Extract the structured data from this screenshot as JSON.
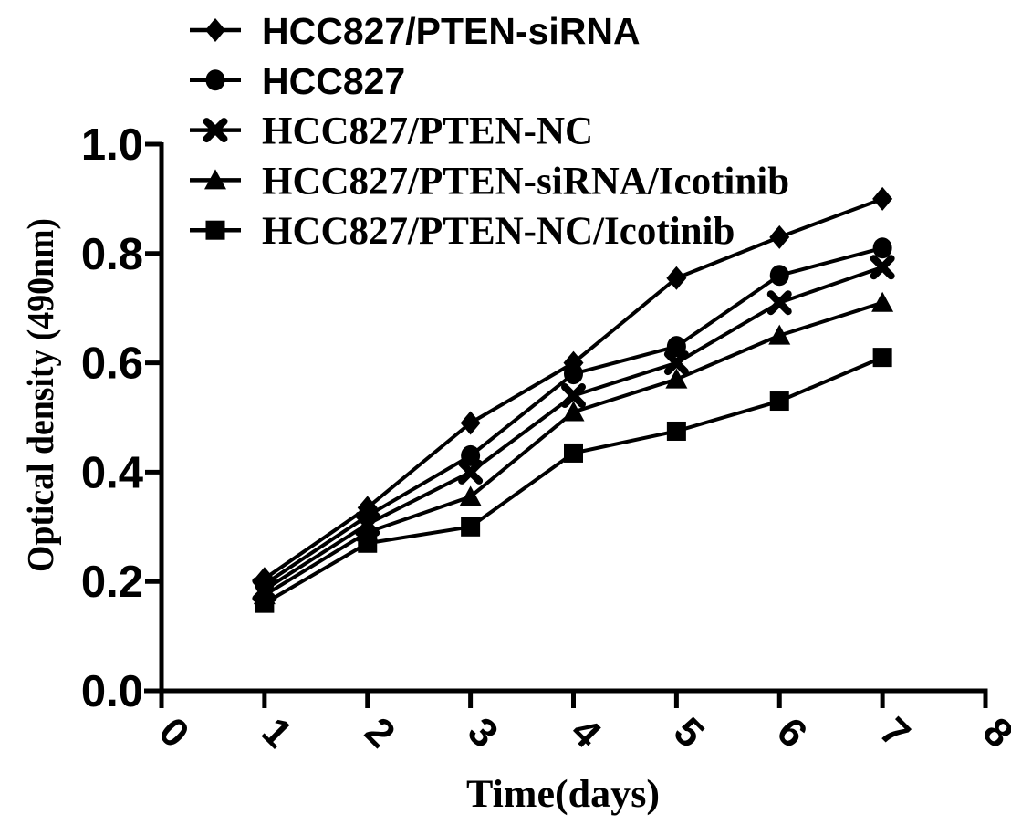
{
  "chart_data": {
    "type": "line",
    "title": "",
    "xlabel": "Time(days)",
    "ylabel": "Optical density (490nm)",
    "x": [
      1,
      2,
      3,
      4,
      5,
      6,
      7
    ],
    "x_ticks": [
      0,
      1,
      2,
      3,
      4,
      5,
      6,
      7,
      8
    ],
    "y_ticks": [
      0.0,
      0.2,
      0.4,
      0.6,
      0.8,
      1.0
    ],
    "xlim": [
      0,
      8
    ],
    "ylim": [
      0.0,
      1.0
    ],
    "grid": false,
    "legend_position": "top-left",
    "ink_color": "#000000",
    "background_color": "#ffffff",
    "series": [
      {
        "name": "HCC827/PTEN-siRNA",
        "marker": "diamond",
        "values": [
          0.205,
          0.335,
          0.49,
          0.6,
          0.755,
          0.83,
          0.9
        ]
      },
      {
        "name": "HCC827",
        "marker": "circle",
        "values": [
          0.195,
          0.32,
          0.43,
          0.58,
          0.63,
          0.76,
          0.81
        ]
      },
      {
        "name": "HCC827/PTEN-NC",
        "marker": "x",
        "values": [
          0.185,
          0.305,
          0.4,
          0.54,
          0.6,
          0.71,
          0.775
        ]
      },
      {
        "name": "HCC827/PTEN-siRNA/Icotinib",
        "marker": "triangle",
        "values": [
          0.175,
          0.29,
          0.355,
          0.51,
          0.57,
          0.65,
          0.71
        ]
      },
      {
        "name": "HCC827/PTEN-NC/Icotinib",
        "marker": "square",
        "values": [
          0.16,
          0.27,
          0.3,
          0.435,
          0.475,
          0.53,
          0.61
        ]
      }
    ]
  }
}
